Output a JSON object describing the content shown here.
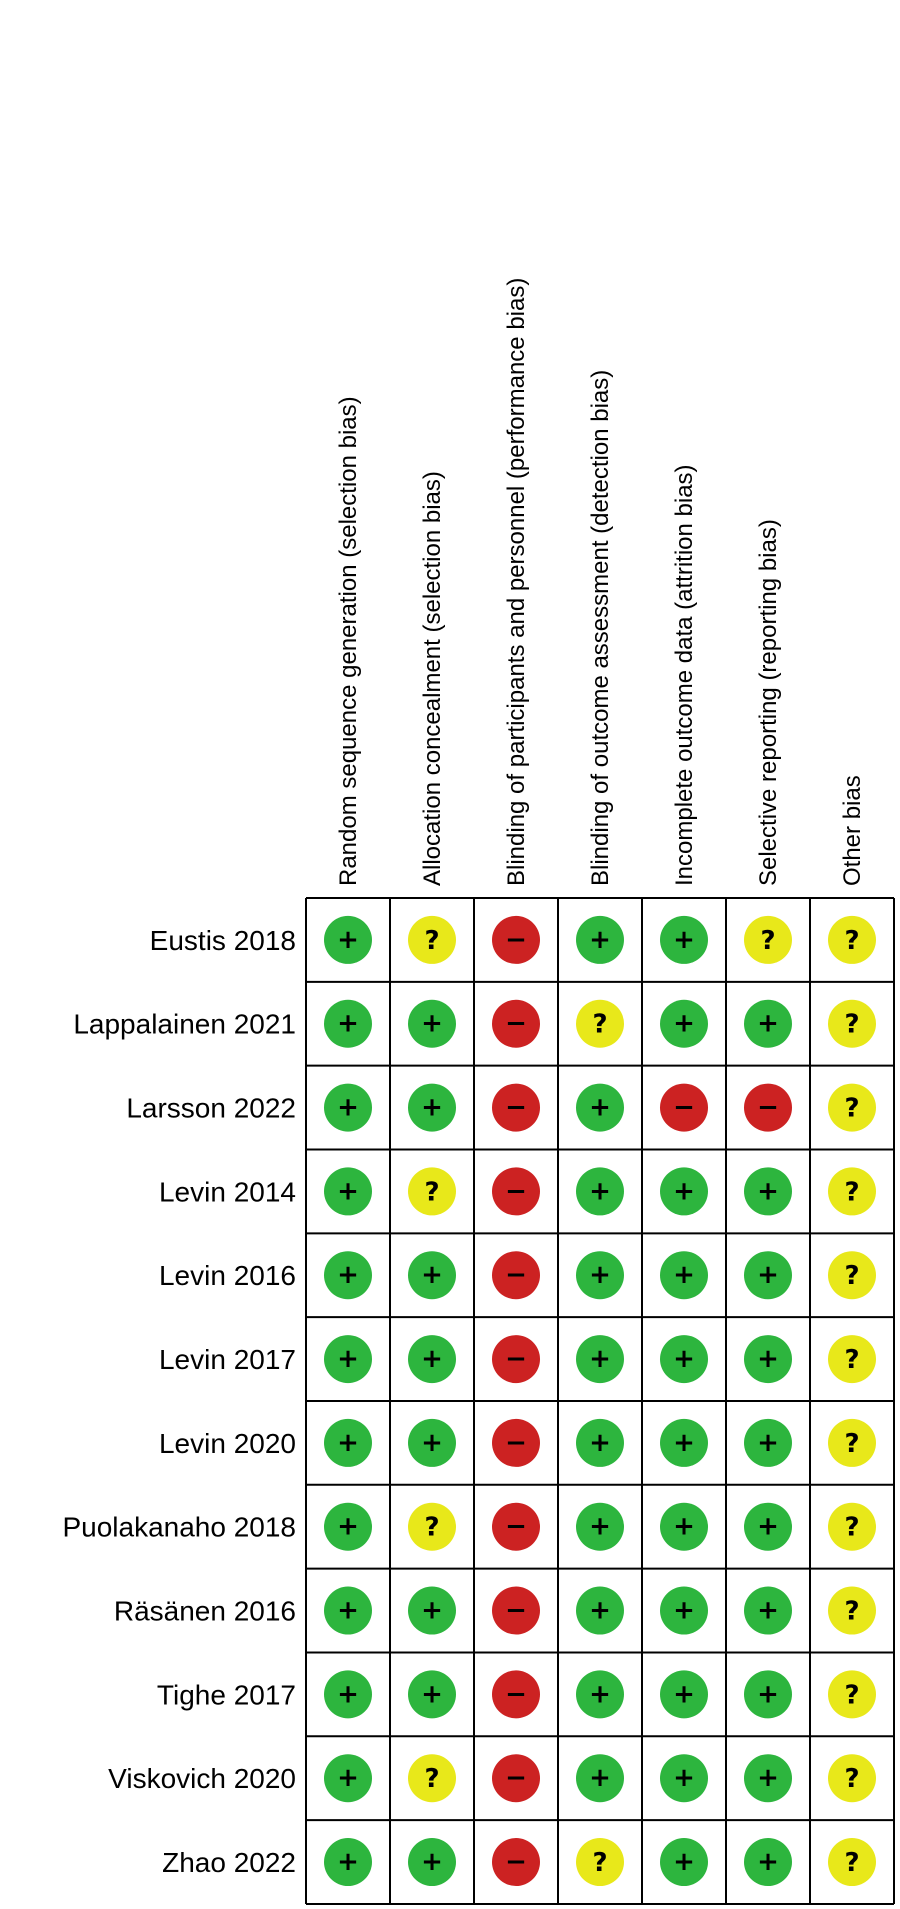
{
  "chart_data": {
    "type": "table",
    "domains": [
      "Random sequence generation (selection bias)",
      "Allocation concealment (selection bias)",
      "Blinding of participants and personnel (performance bias)",
      "Blinding of outcome assessment (detection bias)",
      "Incomplete outcome data (attrition bias)",
      "Selective reporting (reporting bias)",
      "Other bias"
    ],
    "studies": [
      {
        "name": "Eustis 2018",
        "ratings": [
          "low",
          "unclear",
          "high",
          "low",
          "low",
          "unclear",
          "unclear"
        ]
      },
      {
        "name": "Lappalainen 2021",
        "ratings": [
          "low",
          "low",
          "high",
          "unclear",
          "low",
          "low",
          "unclear"
        ]
      },
      {
        "name": "Larsson 2022",
        "ratings": [
          "low",
          "low",
          "high",
          "low",
          "high",
          "high",
          "unclear"
        ]
      },
      {
        "name": "Levin 2014",
        "ratings": [
          "low",
          "unclear",
          "high",
          "low",
          "low",
          "low",
          "unclear"
        ]
      },
      {
        "name": "Levin 2016",
        "ratings": [
          "low",
          "low",
          "high",
          "low",
          "low",
          "low",
          "unclear"
        ]
      },
      {
        "name": "Levin 2017",
        "ratings": [
          "low",
          "low",
          "high",
          "low",
          "low",
          "low",
          "unclear"
        ]
      },
      {
        "name": "Levin 2020",
        "ratings": [
          "low",
          "low",
          "high",
          "low",
          "low",
          "low",
          "unclear"
        ]
      },
      {
        "name": "Puolakanaho 2018",
        "ratings": [
          "low",
          "unclear",
          "high",
          "low",
          "low",
          "low",
          "unclear"
        ]
      },
      {
        "name": "Räsänen 2016",
        "ratings": [
          "low",
          "low",
          "high",
          "low",
          "low",
          "low",
          "unclear"
        ]
      },
      {
        "name": "Tighe 2017",
        "ratings": [
          "low",
          "low",
          "high",
          "low",
          "low",
          "low",
          "unclear"
        ]
      },
      {
        "name": "Viskovich 2020",
        "ratings": [
          "low",
          "unclear",
          "high",
          "low",
          "low",
          "low",
          "unclear"
        ]
      },
      {
        "name": "Zhao 2022",
        "ratings": [
          "low",
          "low",
          "high",
          "unclear",
          "low",
          "low",
          "unclear"
        ]
      }
    ],
    "rating_styles": {
      "low": {
        "symbol": "+",
        "color": "#2DB53E"
      },
      "unclear": {
        "symbol": "?",
        "color": "#E8E81A"
      },
      "high": {
        "symbol": "−",
        "color": "#CC2222"
      }
    },
    "grid_color": "#000000"
  }
}
